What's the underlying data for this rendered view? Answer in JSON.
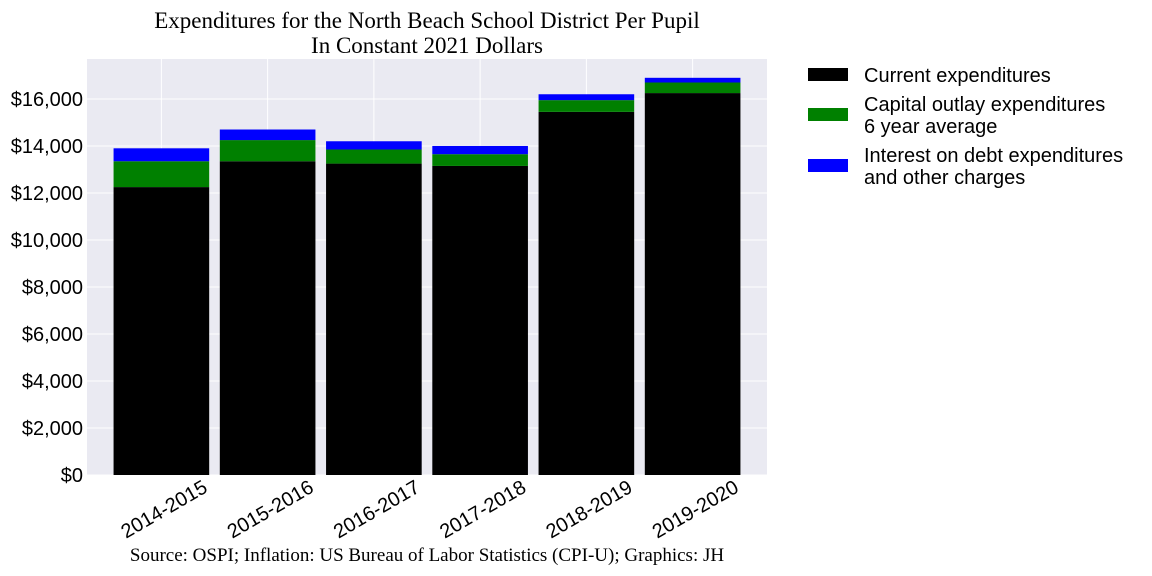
{
  "chart_data": {
    "type": "bar",
    "stacked": true,
    "title": [
      "Expenditures for the North Beach School District Per Pupil",
      "In Constant 2021 Dollars"
    ],
    "source": "Source: OSPI; Inflation: US Bureau of Labor Statistics (CPI-U); Graphics: JH",
    "categories": [
      "2014-2015",
      "2015-2016",
      "2016-2017",
      "2017-2018",
      "2018-2019",
      "2019-2020"
    ],
    "series": [
      {
        "name": "Current expenditures",
        "legend_lines": [
          "Current expenditures"
        ],
        "color": "#000000",
        "values": [
          12250,
          13350,
          13250,
          13150,
          15450,
          16250
        ]
      },
      {
        "name": "Capital outlay expenditures 6 year average",
        "legend_lines": [
          "Capital outlay expenditures",
          "6 year average"
        ],
        "color": "#008000",
        "values": [
          1100,
          900,
          600,
          500,
          500,
          450
        ]
      },
      {
        "name": "Interest on debt expenditures and other charges",
        "legend_lines": [
          "Interest on debt expenditures",
          "and other charges"
        ],
        "color": "#0000ff",
        "values": [
          550,
          450,
          350,
          350,
          250,
          200
        ]
      }
    ],
    "ylim": [
      0,
      17700
    ],
    "yticks": [
      0,
      2000,
      4000,
      6000,
      8000,
      10000,
      12000,
      14000,
      16000
    ],
    "ytick_labels": [
      "$0",
      "$2,000",
      "$4,000",
      "$6,000",
      "$8,000",
      "$10,000",
      "$12,000",
      "$14,000",
      "$16,000"
    ],
    "grid": true,
    "legend_position": "outside-right",
    "background_color": "#eaeaf2",
    "grid_color": "#ffffff"
  }
}
